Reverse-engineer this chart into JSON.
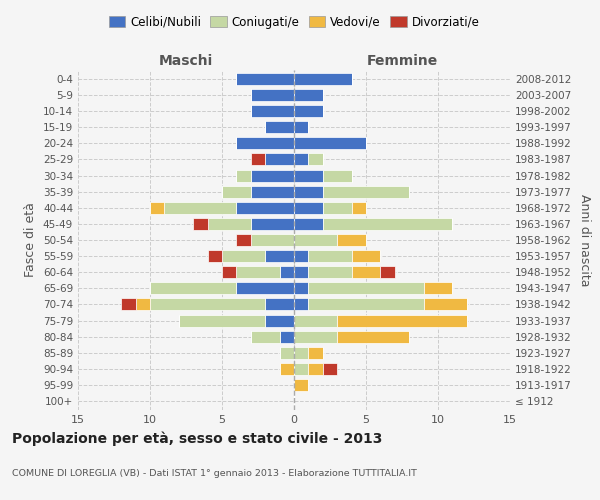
{
  "age_groups": [
    "100+",
    "95-99",
    "90-94",
    "85-89",
    "80-84",
    "75-79",
    "70-74",
    "65-69",
    "60-64",
    "55-59",
    "50-54",
    "45-49",
    "40-44",
    "35-39",
    "30-34",
    "25-29",
    "20-24",
    "15-19",
    "10-14",
    "5-9",
    "0-4"
  ],
  "birth_years": [
    "≤ 1912",
    "1913-1917",
    "1918-1922",
    "1923-1927",
    "1928-1932",
    "1933-1937",
    "1938-1942",
    "1943-1947",
    "1948-1952",
    "1953-1957",
    "1958-1962",
    "1963-1967",
    "1968-1972",
    "1973-1977",
    "1978-1982",
    "1983-1987",
    "1988-1992",
    "1993-1997",
    "1998-2002",
    "2003-2007",
    "2008-2012"
  ],
  "maschi": {
    "celibi": [
      0,
      0,
      0,
      0,
      1,
      2,
      2,
      4,
      1,
      2,
      0,
      3,
      4,
      3,
      3,
      2,
      4,
      2,
      3,
      3,
      4
    ],
    "coniugati": [
      0,
      0,
      0,
      1,
      2,
      6,
      8,
      6,
      3,
      3,
      3,
      3,
      5,
      2,
      1,
      0,
      0,
      0,
      0,
      0,
      0
    ],
    "vedovi": [
      0,
      0,
      1,
      0,
      0,
      0,
      1,
      0,
      0,
      0,
      0,
      0,
      1,
      0,
      0,
      0,
      0,
      0,
      0,
      0,
      0
    ],
    "divorziati": [
      0,
      0,
      0,
      0,
      0,
      0,
      1,
      0,
      1,
      1,
      1,
      1,
      0,
      0,
      0,
      1,
      0,
      0,
      0,
      0,
      0
    ]
  },
  "femmine": {
    "celibi": [
      0,
      0,
      0,
      0,
      0,
      0,
      1,
      1,
      1,
      1,
      0,
      2,
      2,
      2,
      2,
      1,
      5,
      1,
      2,
      2,
      4
    ],
    "coniugati": [
      0,
      0,
      1,
      1,
      3,
      3,
      8,
      8,
      3,
      3,
      3,
      9,
      2,
      6,
      2,
      1,
      0,
      0,
      0,
      0,
      0
    ],
    "vedovi": [
      0,
      1,
      1,
      1,
      5,
      9,
      3,
      2,
      2,
      2,
      2,
      0,
      1,
      0,
      0,
      0,
      0,
      0,
      0,
      0,
      0
    ],
    "divorziati": [
      0,
      0,
      1,
      0,
      0,
      0,
      0,
      0,
      1,
      0,
      0,
      0,
      0,
      0,
      0,
      0,
      0,
      0,
      0,
      0,
      0
    ]
  },
  "colors": {
    "celibi": "#4472c4",
    "coniugati": "#c5d8a4",
    "vedovi": "#f0b942",
    "divorziati": "#c0392b"
  },
  "xlim": 15,
  "title": "Popolazione per età, sesso e stato civile - 2013",
  "subtitle": "COMUNE DI LOREGLIA (VB) - Dati ISTAT 1° gennaio 2013 - Elaborazione TUTTITALIA.IT",
  "ylabel": "Fasce di età",
  "ylabel_right": "Anni di nascita",
  "xlabel_maschi": "Maschi",
  "xlabel_femmine": "Femmine",
  "legend_labels": [
    "Celibi/Nubili",
    "Coniugati/e",
    "Vedovi/e",
    "Divorziati/e"
  ],
  "bg_color": "#f5f5f5",
  "plot_bg": "#f5f5f5"
}
